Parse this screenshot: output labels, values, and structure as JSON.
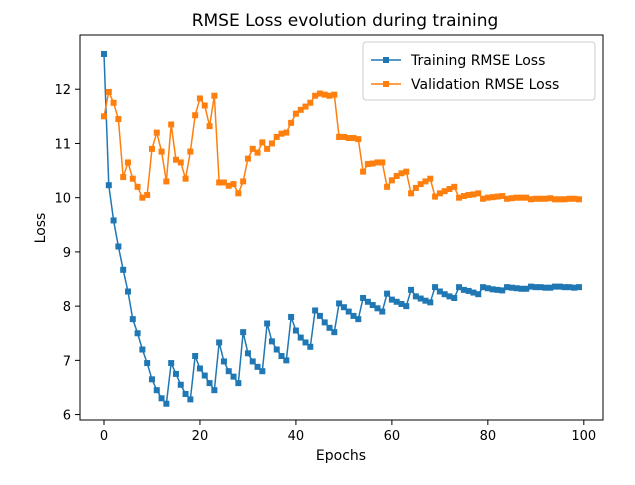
{
  "chart_data": {
    "type": "line",
    "title": "RMSE Loss evolution during training",
    "xlabel": "Epochs",
    "ylabel": "Loss",
    "xlim": [
      -5,
      104
    ],
    "ylim": [
      5.9,
      13.0
    ],
    "xticks": [
      0,
      20,
      40,
      60,
      80,
      100
    ],
    "yticks": [
      6,
      7,
      8,
      9,
      10,
      11,
      12
    ],
    "grid": false,
    "legend_position": "top-right",
    "x": [
      0,
      1,
      2,
      3,
      4,
      5,
      6,
      7,
      8,
      9,
      10,
      11,
      12,
      13,
      14,
      15,
      16,
      17,
      18,
      19,
      20,
      21,
      22,
      23,
      24,
      25,
      26,
      27,
      28,
      29,
      30,
      31,
      32,
      33,
      34,
      35,
      36,
      37,
      38,
      39,
      40,
      41,
      42,
      43,
      44,
      45,
      46,
      47,
      48,
      49,
      50,
      51,
      52,
      53,
      54,
      55,
      56,
      57,
      58,
      59,
      60,
      61,
      62,
      63,
      64,
      65,
      66,
      67,
      68,
      69,
      70,
      71,
      72,
      73,
      74,
      75,
      76,
      77,
      78,
      79,
      80,
      81,
      82,
      83,
      84,
      85,
      86,
      87,
      88,
      89,
      90,
      91,
      92,
      93,
      94,
      95,
      96,
      97,
      98,
      99
    ],
    "series": [
      {
        "name": "Training RMSE Loss",
        "color": "#1f77b4",
        "values": [
          12.65,
          10.23,
          9.58,
          9.1,
          8.67,
          8.27,
          7.76,
          7.5,
          7.2,
          6.95,
          6.65,
          6.45,
          6.3,
          6.2,
          6.95,
          6.75,
          6.55,
          6.38,
          6.28,
          7.08,
          6.85,
          6.72,
          6.58,
          6.45,
          7.33,
          6.98,
          6.8,
          6.7,
          6.58,
          7.52,
          7.13,
          6.98,
          6.88,
          6.8,
          7.68,
          7.35,
          7.2,
          7.08,
          7.0,
          7.8,
          7.55,
          7.42,
          7.33,
          7.25,
          7.92,
          7.82,
          7.7,
          7.6,
          7.52,
          8.05,
          7.98,
          7.9,
          7.82,
          7.76,
          8.15,
          8.08,
          8.02,
          7.96,
          7.9,
          8.23,
          8.12,
          8.08,
          8.04,
          8.0,
          8.3,
          8.18,
          8.14,
          8.1,
          8.07,
          8.35,
          8.27,
          8.22,
          8.18,
          8.15,
          8.35,
          8.3,
          8.28,
          8.25,
          8.22,
          8.35,
          8.33,
          8.31,
          8.3,
          8.29,
          8.35,
          8.34,
          8.33,
          8.32,
          8.32,
          8.36,
          8.35,
          8.35,
          8.34,
          8.34,
          8.36,
          8.36,
          8.35,
          8.35,
          8.34,
          8.35
        ]
      },
      {
        "name": "Validation RMSE Loss",
        "color": "#ff7f0e",
        "values": [
          11.5,
          11.95,
          11.75,
          11.45,
          10.38,
          10.65,
          10.35,
          10.2,
          10.0,
          10.05,
          10.9,
          11.2,
          10.85,
          10.3,
          11.35,
          10.7,
          10.65,
          10.35,
          10.85,
          11.52,
          11.83,
          11.7,
          11.32,
          11.88,
          10.28,
          10.28,
          10.22,
          10.25,
          10.08,
          10.3,
          10.72,
          10.9,
          10.83,
          11.02,
          10.9,
          11.0,
          11.12,
          11.18,
          11.2,
          11.38,
          11.55,
          11.62,
          11.68,
          11.75,
          11.88,
          11.92,
          11.9,
          11.88,
          11.9,
          11.12,
          11.12,
          11.1,
          11.1,
          11.08,
          10.48,
          10.62,
          10.63,
          10.65,
          10.65,
          10.2,
          10.32,
          10.4,
          10.45,
          10.48,
          10.08,
          10.18,
          10.25,
          10.3,
          10.35,
          10.02,
          10.08,
          10.12,
          10.16,
          10.2,
          10.0,
          10.03,
          10.05,
          10.06,
          10.08,
          9.98,
          10.0,
          10.01,
          10.02,
          10.03,
          9.98,
          9.99,
          10.0,
          10.0,
          10.0,
          9.97,
          9.98,
          9.98,
          9.98,
          9.99,
          9.97,
          9.97,
          9.97,
          9.98,
          9.98,
          9.97
        ]
      }
    ]
  }
}
